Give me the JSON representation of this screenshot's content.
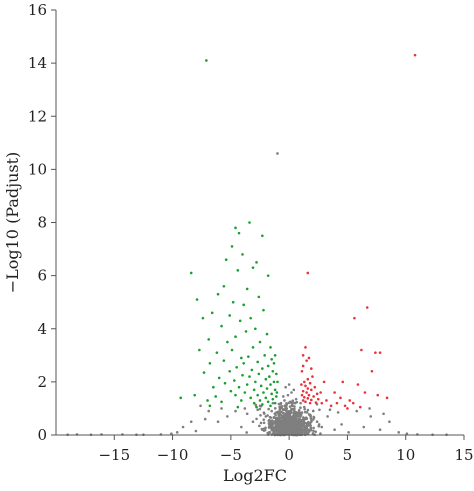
{
  "chart_data": {
    "type": "scatter",
    "title": "",
    "xlabel": "Log2FC",
    "ylabel": "−Log10 (Padjust)",
    "xlim": [
      -20,
      15
    ],
    "ylim": [
      0,
      16
    ],
    "x_ticks": [
      -15,
      -10,
      -5,
      0,
      5,
      10,
      15
    ],
    "x_tick_labels": [
      "−15",
      "−10",
      "−5",
      "0",
      "5",
      "10",
      "15"
    ],
    "y_ticks": [
      0,
      2,
      4,
      6,
      8,
      10,
      12,
      14,
      16
    ],
    "y_tick_labels": [
      "0",
      "2",
      "4",
      "6",
      "8",
      "10",
      "12",
      "14",
      "16"
    ],
    "grid": false,
    "legend": "none",
    "colors": {
      "down": "#1a9e2e",
      "up": "#e8323c",
      "ns": "#7f7f7f"
    },
    "series": [
      {
        "group": "up",
        "points": [
          [
            10.8,
            14.3
          ],
          [
            1.6,
            6.1
          ],
          [
            6.7,
            4.8
          ],
          [
            5.6,
            4.4
          ],
          [
            6.2,
            3.2
          ],
          [
            7.4,
            3.1
          ],
          [
            7.8,
            3.1
          ],
          [
            1.4,
            3.3
          ],
          [
            1.2,
            3.0
          ],
          [
            1.7,
            2.9
          ],
          [
            1.5,
            2.8
          ],
          [
            1.2,
            2.6
          ],
          [
            1.9,
            2.5
          ],
          [
            1.1,
            2.4
          ],
          [
            2.0,
            2.2
          ],
          [
            1.6,
            2.1
          ],
          [
            1.3,
            2.0
          ],
          [
            1.8,
            1.95
          ],
          [
            1.05,
            1.9
          ],
          [
            1.4,
            1.85
          ],
          [
            2.2,
            1.8
          ],
          [
            1.6,
            1.75
          ],
          [
            1.9,
            1.7
          ],
          [
            1.2,
            1.65
          ],
          [
            1.5,
            1.6
          ],
          [
            2.4,
            1.55
          ],
          [
            1.1,
            1.5
          ],
          [
            1.7,
            1.5
          ],
          [
            2.1,
            1.45
          ],
          [
            1.3,
            1.42
          ],
          [
            1.6,
            1.38
          ],
          [
            2.5,
            1.35
          ],
          [
            1.9,
            1.32
          ],
          [
            1.2,
            1.3
          ],
          [
            1.4,
            1.25
          ],
          [
            2.3,
            1.22
          ],
          [
            1.8,
            1.2
          ],
          [
            2.8,
            1.2
          ],
          [
            3.2,
            1.3
          ],
          [
            3.6,
            1.1
          ],
          [
            4.1,
            1.2
          ],
          [
            3.9,
            1.6
          ],
          [
            4.4,
            1.4
          ],
          [
            4.8,
            1.1
          ],
          [
            5.2,
            1.3
          ],
          [
            5.5,
            1.2
          ],
          [
            5.9,
            1.9
          ],
          [
            6.5,
            1.6
          ],
          [
            7.1,
            2.4
          ],
          [
            7.6,
            1.5
          ],
          [
            8.4,
            1.4
          ],
          [
            4.6,
            2.0
          ],
          [
            5.0,
            1.0
          ],
          [
            2.7,
            1.6
          ],
          [
            3.0,
            2.0
          ],
          [
            6.1,
            1.05
          ]
        ]
      },
      {
        "group": "down",
        "points": [
          [
            -7.1,
            14.1
          ],
          [
            -3.4,
            8.0
          ],
          [
            -4.6,
            7.8
          ],
          [
            -4.3,
            7.6
          ],
          [
            -2.3,
            7.5
          ],
          [
            -4.9,
            7.1
          ],
          [
            -5.4,
            6.6
          ],
          [
            -4.0,
            6.8
          ],
          [
            -2.8,
            6.5
          ],
          [
            -3.1,
            6.3
          ],
          [
            -8.4,
            6.1
          ],
          [
            -4.4,
            6.2
          ],
          [
            -1.8,
            6.0
          ],
          [
            -5.6,
            5.6
          ],
          [
            -6.1,
            5.3
          ],
          [
            -3.6,
            5.5
          ],
          [
            -2.6,
            5.2
          ],
          [
            -4.8,
            5.0
          ],
          [
            -7.9,
            5.1
          ],
          [
            -3.9,
            4.9
          ],
          [
            -6.6,
            4.6
          ],
          [
            -5.1,
            4.5
          ],
          [
            -2.2,
            4.7
          ],
          [
            -3.3,
            4.4
          ],
          [
            -4.2,
            4.3
          ],
          [
            -7.4,
            4.4
          ],
          [
            -5.8,
            4.1
          ],
          [
            -2.9,
            4.0
          ],
          [
            -3.7,
            3.9
          ],
          [
            -1.9,
            3.8
          ],
          [
            -4.6,
            3.7
          ],
          [
            -6.9,
            3.6
          ],
          [
            -5.3,
            3.5
          ],
          [
            -2.5,
            3.5
          ],
          [
            -3.1,
            3.3
          ],
          [
            -1.6,
            3.3
          ],
          [
            -4.9,
            3.2
          ],
          [
            -7.7,
            3.2
          ],
          [
            -6.2,
            3.1
          ],
          [
            -2.1,
            3.0
          ],
          [
            -3.5,
            2.95
          ],
          [
            -4.1,
            2.9
          ],
          [
            -1.5,
            2.85
          ],
          [
            -5.6,
            2.8
          ],
          [
            -2.7,
            2.75
          ],
          [
            -3.9,
            2.7
          ],
          [
            -6.8,
            2.7
          ],
          [
            -1.8,
            2.6
          ],
          [
            -4.5,
            2.55
          ],
          [
            -2.3,
            2.5
          ],
          [
            -3.2,
            2.45
          ],
          [
            -5.1,
            2.4
          ],
          [
            -1.4,
            2.4
          ],
          [
            -7.3,
            2.35
          ],
          [
            -2.6,
            2.3
          ],
          [
            -4.0,
            2.25
          ],
          [
            -1.7,
            2.2
          ],
          [
            -3.4,
            2.2
          ],
          [
            -6.0,
            2.15
          ],
          [
            -2.0,
            2.1
          ],
          [
            -4.7,
            2.05
          ],
          [
            -1.3,
            2.0
          ],
          [
            -2.9,
            2.0
          ],
          [
            -5.5,
            1.95
          ],
          [
            -3.6,
            1.9
          ],
          [
            -1.6,
            1.9
          ],
          [
            -2.4,
            1.85
          ],
          [
            -4.3,
            1.8
          ],
          [
            -6.5,
            1.8
          ],
          [
            -1.9,
            1.75
          ],
          [
            -3.0,
            1.7
          ],
          [
            -1.2,
            1.7
          ],
          [
            -5.0,
            1.65
          ],
          [
            -2.2,
            1.6
          ],
          [
            -3.8,
            1.6
          ],
          [
            -1.5,
            1.55
          ],
          [
            -2.7,
            1.5
          ],
          [
            -4.6,
            1.5
          ],
          [
            -1.1,
            1.45
          ],
          [
            -6.3,
            1.45
          ],
          [
            -2.0,
            1.4
          ],
          [
            -3.3,
            1.4
          ],
          [
            -1.4,
            1.35
          ],
          [
            -2.5,
            1.3
          ],
          [
            -4.1,
            1.3
          ],
          [
            -1.8,
            1.25
          ],
          [
            -5.8,
            1.25
          ],
          [
            -3.0,
            1.2
          ],
          [
            -1.2,
            1.2
          ],
          [
            -2.3,
            1.15
          ],
          [
            -7.0,
            1.3
          ],
          [
            -8.1,
            1.5
          ],
          [
            -9.3,
            1.4
          ],
          [
            -6.8,
            1.1
          ],
          [
            -1.6,
            1.1
          ],
          [
            -2.8,
            1.05
          ],
          [
            -4.4,
            1.05
          ],
          [
            -1.05,
            1.6
          ],
          [
            -1.1,
            2.3
          ],
          [
            -1.3,
            2.7
          ],
          [
            -1.2,
            3.0
          ],
          [
            -1.0,
            2.0
          ]
        ]
      },
      {
        "group": "ns",
        "points": [
          [
            -1.0,
            10.6
          ],
          [
            -7.6,
            1.1
          ],
          [
            -6.9,
            0.9
          ],
          [
            -8.4,
            0.5
          ],
          [
            -9.6,
            0.1
          ],
          [
            -6.1,
            0.5
          ],
          [
            -5.3,
            0.7
          ],
          [
            -4.6,
            0.9
          ],
          [
            -4.1,
            0.3
          ],
          [
            -3.6,
            0.8
          ],
          [
            -3.1,
            0.5
          ],
          [
            -2.7,
            0.95
          ],
          [
            -2.3,
            0.2
          ],
          [
            -2.0,
            0.7
          ],
          [
            -1.7,
            0.4
          ],
          [
            -1.5,
            0.9
          ],
          [
            -1.3,
            0.1
          ],
          [
            -1.1,
            0.6
          ],
          [
            -0.9,
            0.3
          ],
          [
            -0.8,
            0.95
          ],
          [
            -0.6,
            0.5
          ],
          [
            -0.5,
            0.15
          ],
          [
            -0.4,
            0.8
          ],
          [
            -0.3,
            0.4
          ],
          [
            -0.2,
            1.0
          ],
          [
            -0.1,
            0.2
          ],
          [
            0.0,
            0.6
          ],
          [
            0.1,
            0.9
          ],
          [
            0.2,
            0.3
          ],
          [
            0.3,
            0.7
          ],
          [
            0.4,
            0.1
          ],
          [
            0.5,
            0.5
          ],
          [
            0.6,
            0.85
          ],
          [
            0.7,
            0.25
          ],
          [
            0.8,
            0.6
          ],
          [
            0.9,
            0.4
          ],
          [
            1.0,
            0.8
          ],
          [
            1.2,
            0.2
          ],
          [
            1.4,
            0.6
          ],
          [
            1.6,
            0.35
          ],
          [
            1.8,
            0.75
          ],
          [
            2.1,
            0.15
          ],
          [
            2.4,
            0.5
          ],
          [
            2.8,
            0.3
          ],
          [
            3.3,
            0.7
          ],
          [
            3.9,
            0.2
          ],
          [
            4.5,
            0.4
          ],
          [
            5.1,
            0.1
          ],
          [
            5.8,
            0.9
          ],
          [
            6.4,
            0.3
          ],
          [
            7.0,
            0.7
          ],
          [
            7.8,
            0.2
          ],
          [
            8.6,
            0.5
          ],
          [
            -0.7,
            1.2
          ],
          [
            -0.4,
            1.3
          ],
          [
            -0.2,
            1.15
          ],
          [
            0.1,
            1.25
          ],
          [
            0.3,
            1.1
          ],
          [
            0.6,
            1.35
          ],
          [
            -0.1,
            1.5
          ],
          [
            0.2,
            1.6
          ],
          [
            -0.5,
            1.45
          ],
          [
            0.4,
            1.7
          ],
          [
            -0.3,
            1.8
          ],
          [
            0.0,
            1.9
          ],
          [
            0.5,
            1.2
          ],
          [
            -0.8,
            1.05
          ],
          [
            -1.4,
            1.2
          ],
          [
            1.3,
            1.05
          ],
          [
            2.6,
            0.95
          ],
          [
            -2.5,
            1.1
          ],
          [
            -3.8,
            1.0
          ],
          [
            -5.8,
            1.0
          ],
          [
            6.9,
            1.0
          ],
          [
            8.1,
            0.8
          ],
          [
            4.2,
            0.85
          ],
          [
            -9.1,
            0.3
          ],
          [
            -8.0,
            0.15
          ],
          [
            -7.2,
            0.6
          ],
          [
            -10.1,
            0.05
          ],
          [
            -11.0,
            0.02
          ],
          [
            -12.5,
            0.01
          ],
          [
            -19.0,
            0.01
          ],
          [
            -18.2,
            0.02
          ],
          [
            -17.0,
            0.01
          ],
          [
            -14.3,
            0.02
          ],
          [
            -13.1,
            0.01
          ],
          [
            -16.1,
            0.02
          ],
          [
            9.4,
            0.1
          ],
          [
            10.1,
            0.05
          ],
          [
            11.0,
            0.02
          ],
          [
            12.3,
            0.01
          ],
          [
            13.5,
            0.01
          ]
        ]
      }
    ]
  }
}
